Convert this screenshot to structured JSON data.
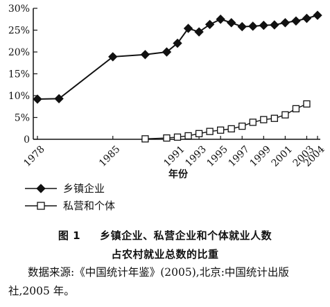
{
  "chart_data": {
    "type": "line",
    "x": [
      1978,
      1980,
      1985,
      1988,
      1990,
      1991,
      1992,
      1993,
      1994,
      1995,
      1996,
      1997,
      1998,
      1999,
      2000,
      2001,
      2002,
      2003,
      2004
    ],
    "x_tick_labels": [
      "1978",
      "1985",
      "1991",
      "1993",
      "1995",
      "1997",
      "1999",
      "2001",
      "2003",
      "2004"
    ],
    "xlabel": "年份",
    "ylabel": "",
    "ylim": [
      0,
      30
    ],
    "y_tick_labels": [
      "0",
      "5%",
      "10%",
      "15%",
      "20%",
      "25%",
      "30%"
    ],
    "series": [
      {
        "name": "乡镇企业",
        "marker": "diamond-filled",
        "color": "#111111",
        "values": [
          9.2,
          9.3,
          18.9,
          19.4,
          20.0,
          22.0,
          25.4,
          24.6,
          26.3,
          27.5,
          26.7,
          25.8,
          25.9,
          26.1,
          26.2,
          26.7,
          27.1,
          27.7,
          28.4
        ]
      },
      {
        "name": "私营和个体",
        "marker": "square-open",
        "color": "#111111",
        "values": [
          null,
          null,
          null,
          0.1,
          0.3,
          0.5,
          0.8,
          1.3,
          1.8,
          2.1,
          2.4,
          3.0,
          3.9,
          4.5,
          4.8,
          5.6,
          7.0,
          8.1,
          null
        ]
      }
    ]
  },
  "caption": {
    "figure_label": "图 1",
    "line1": "乡镇企业、私营企业和个体就业人数",
    "line2": "占农村就业总数的比重"
  },
  "source_text": "数据来源:《中国统计年鉴》(2005),北京:中国统计出版社,2005 年。"
}
